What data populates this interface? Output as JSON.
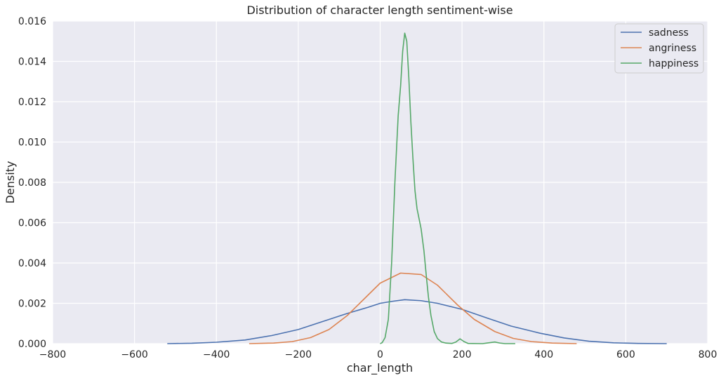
{
  "chart_data": {
    "type": "line",
    "title": "Distribution of character length sentiment-wise",
    "xlabel": "char_length",
    "ylabel": "Density",
    "xlim": [
      -800,
      800
    ],
    "ylim": [
      0,
      0.016
    ],
    "xticks": [
      -800,
      -600,
      -400,
      -200,
      0,
      200,
      400,
      600,
      800
    ],
    "xtick_labels": [
      "−800",
      "−600",
      "−400",
      "−200",
      "0",
      "200",
      "400",
      "600",
      "800"
    ],
    "yticks": [
      0,
      0.002,
      0.004,
      0.006,
      0.008,
      0.01,
      0.012,
      0.014,
      0.016
    ],
    "ytick_labels": [
      "0.000",
      "0.002",
      "0.004",
      "0.006",
      "0.008",
      "0.010",
      "0.012",
      "0.014",
      "0.016"
    ],
    "grid": true,
    "legend_position": "top-right",
    "series": [
      {
        "name": "sadness",
        "color": "#4c72b0",
        "points": [
          [
            -520,
            0
          ],
          [
            -460,
            2e-05
          ],
          [
            -400,
            7e-05
          ],
          [
            -330,
            0.00018
          ],
          [
            -265,
            0.0004
          ],
          [
            -200,
            0.0007
          ],
          [
            -140,
            0.0011
          ],
          [
            -80,
            0.0015
          ],
          [
            -30,
            0.0018
          ],
          [
            0,
            0.002
          ],
          [
            30,
            0.0021
          ],
          [
            60,
            0.00218
          ],
          [
            100,
            0.00213
          ],
          [
            140,
            0.002
          ],
          [
            200,
            0.0017
          ],
          [
            260,
            0.00128
          ],
          [
            320,
            0.00087
          ],
          [
            390,
            0.00052
          ],
          [
            450,
            0.00028
          ],
          [
            510,
            0.00012
          ],
          [
            570,
            4e-05
          ],
          [
            630,
            1e-05
          ],
          [
            700,
            0
          ]
        ]
      },
      {
        "name": "angriness",
        "color": "#dd8452",
        "points": [
          [
            -320,
            0
          ],
          [
            -260,
            3e-05
          ],
          [
            -215,
            0.0001
          ],
          [
            -170,
            0.0003
          ],
          [
            -125,
            0.0007
          ],
          [
            -80,
            0.0014
          ],
          [
            -40,
            0.0022
          ],
          [
            0,
            0.003
          ],
          [
            50,
            0.0035
          ],
          [
            100,
            0.00343
          ],
          [
            140,
            0.0029
          ],
          [
            190,
            0.0019
          ],
          [
            230,
            0.0012
          ],
          [
            280,
            0.0006
          ],
          [
            325,
            0.00026
          ],
          [
            370,
            0.0001
          ],
          [
            420,
            3e-05
          ],
          [
            480,
            0
          ]
        ]
      },
      {
        "name": "happiness",
        "color": "#55a868",
        "points": [
          [
            0,
            0
          ],
          [
            5,
            5e-05
          ],
          [
            12,
            0.0003
          ],
          [
            20,
            0.0012
          ],
          [
            28,
            0.004
          ],
          [
            36,
            0.008
          ],
          [
            44,
            0.0113
          ],
          [
            50,
            0.0128
          ],
          [
            55,
            0.0145
          ],
          [
            60,
            0.0154
          ],
          [
            65,
            0.015
          ],
          [
            70,
            0.0132
          ],
          [
            75,
            0.011
          ],
          [
            80,
            0.0092
          ],
          [
            85,
            0.0076
          ],
          [
            90,
            0.0067
          ],
          [
            100,
            0.0057
          ],
          [
            107,
            0.0046
          ],
          [
            113,
            0.0033
          ],
          [
            118,
            0.0023
          ],
          [
            124,
            0.0014
          ],
          [
            132,
            0.0006
          ],
          [
            140,
            0.00025
          ],
          [
            150,
            8e-05
          ],
          [
            160,
            3e-05
          ],
          [
            175,
            1e-05
          ],
          [
            185,
            8e-05
          ],
          [
            195,
            0.00024
          ],
          [
            205,
            0.0001
          ],
          [
            215,
            1e-05
          ],
          [
            250,
            0
          ],
          [
            265,
            4e-05
          ],
          [
            280,
            8e-05
          ],
          [
            292,
            3e-05
          ],
          [
            305,
            0
          ],
          [
            330,
            0
          ]
        ]
      }
    ]
  }
}
